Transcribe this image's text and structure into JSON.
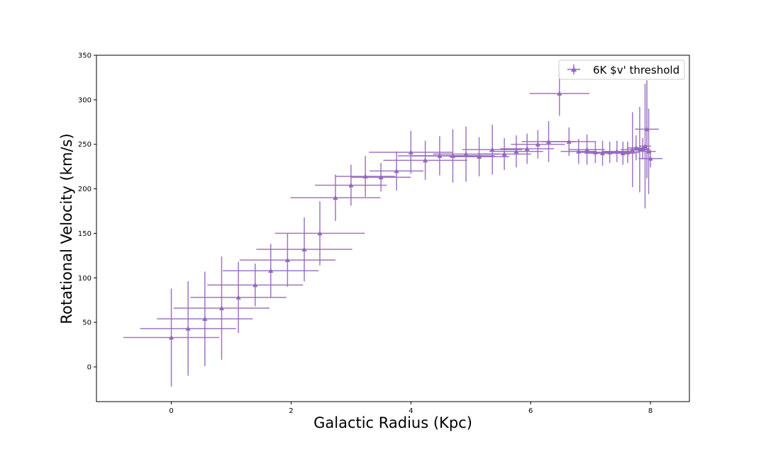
{
  "chart_data": {
    "type": "scatter",
    "xlabel": "Galactic Radius (Kpc)",
    "ylabel": "Rotational Velocity (km/s)",
    "xlim": [
      -1.25,
      8.65
    ],
    "ylim": [
      -39,
      350
    ],
    "xticks": [
      0,
      2,
      4,
      6,
      8
    ],
    "yticks": [
      0,
      50,
      100,
      150,
      200,
      250,
      300,
      350
    ],
    "grid": false,
    "legend_position": "top-right",
    "series": [
      {
        "name": "6K $v' threshold",
        "color": "#9467bd",
        "marker": "triangle",
        "points": [
          {
            "x": 0.0,
            "y": 33,
            "xerr": 0.8,
            "yerr": 55
          },
          {
            "x": 0.28,
            "y": 43,
            "xerr": 0.8,
            "yerr": 53
          },
          {
            "x": 0.56,
            "y": 54,
            "xerr": 0.8,
            "yerr": 53
          },
          {
            "x": 0.84,
            "y": 66,
            "xerr": 0.8,
            "yerr": 58
          },
          {
            "x": 1.12,
            "y": 78,
            "xerr": 0.8,
            "yerr": 40
          },
          {
            "x": 1.4,
            "y": 92,
            "xerr": 0.8,
            "yerr": 24
          },
          {
            "x": 1.66,
            "y": 108,
            "xerr": 0.8,
            "yerr": 30
          },
          {
            "x": 1.94,
            "y": 120,
            "xerr": 0.8,
            "yerr": 30
          },
          {
            "x": 2.22,
            "y": 132,
            "xerr": 0.8,
            "yerr": 36
          },
          {
            "x": 2.48,
            "y": 150,
            "xerr": 0.75,
            "yerr": 36
          },
          {
            "x": 2.74,
            "y": 190,
            "xerr": 0.75,
            "yerr": 26
          },
          {
            "x": 3.0,
            "y": 204,
            "xerr": 0.6,
            "yerr": 23
          },
          {
            "x": 3.24,
            "y": 214,
            "xerr": 0.5,
            "yerr": 23
          },
          {
            "x": 3.5,
            "y": 213,
            "xerr": 0.5,
            "yerr": 16
          },
          {
            "x": 3.76,
            "y": 220,
            "xerr": 0.45,
            "yerr": 22
          },
          {
            "x": 4.0,
            "y": 241,
            "xerr": 0.7,
            "yerr": 24
          },
          {
            "x": 4.24,
            "y": 232,
            "xerr": 0.7,
            "yerr": 22
          },
          {
            "x": 4.48,
            "y": 237,
            "xerr": 0.7,
            "yerr": 22
          },
          {
            "x": 4.7,
            "y": 237,
            "xerr": 0.7,
            "yerr": 30
          },
          {
            "x": 4.92,
            "y": 239,
            "xerr": 0.55,
            "yerr": 31
          },
          {
            "x": 5.14,
            "y": 236,
            "xerr": 0.5,
            "yerr": 22
          },
          {
            "x": 5.36,
            "y": 244,
            "xerr": 0.5,
            "yerr": 28
          },
          {
            "x": 5.56,
            "y": 239,
            "xerr": 0.45,
            "yerr": 18
          },
          {
            "x": 5.76,
            "y": 242,
            "xerr": 0.45,
            "yerr": 18
          },
          {
            "x": 5.94,
            "y": 245,
            "xerr": 0.45,
            "yerr": 17
          },
          {
            "x": 6.12,
            "y": 250,
            "xerr": 0.45,
            "yerr": 16
          },
          {
            "x": 6.3,
            "y": 253,
            "xerr": 0.45,
            "yerr": 23
          },
          {
            "x": 6.48,
            "y": 307,
            "xerr": 0.5,
            "yerr": 25
          },
          {
            "x": 6.64,
            "y": 253,
            "xerr": 0.45,
            "yerr": 16
          },
          {
            "x": 6.8,
            "y": 242,
            "xerr": 0.3,
            "yerr": 14
          },
          {
            "x": 6.94,
            "y": 244,
            "xerr": 0.3,
            "yerr": 17
          },
          {
            "x": 7.08,
            "y": 241,
            "xerr": 0.3,
            "yerr": 12
          },
          {
            "x": 7.2,
            "y": 240,
            "xerr": 0.3,
            "yerr": 14
          },
          {
            "x": 7.32,
            "y": 241,
            "xerr": 0.3,
            "yerr": 12
          },
          {
            "x": 7.44,
            "y": 242,
            "xerr": 0.25,
            "yerr": 12
          },
          {
            "x": 7.54,
            "y": 240,
            "xerr": 0.2,
            "yerr": 13
          },
          {
            "x": 7.62,
            "y": 241,
            "xerr": 0.2,
            "yerr": 12
          },
          {
            "x": 7.7,
            "y": 244,
            "xerr": 0.2,
            "yerr": 42
          },
          {
            "x": 7.76,
            "y": 246,
            "xerr": 0.15,
            "yerr": 14
          },
          {
            "x": 7.82,
            "y": 244,
            "xerr": 0.15,
            "yerr": 48
          },
          {
            "x": 7.87,
            "y": 245,
            "xerr": 0.12,
            "yerr": 12
          },
          {
            "x": 7.91,
            "y": 248,
            "xerr": 0.1,
            "yerr": 70
          },
          {
            "x": 7.94,
            "y": 267,
            "xerr": 0.2,
            "yerr": 55
          },
          {
            "x": 7.97,
            "y": 242,
            "xerr": 0.12,
            "yerr": 48
          },
          {
            "x": 8.0,
            "y": 234,
            "xerr": 0.2,
            "yerr": 10
          }
        ]
      }
    ]
  }
}
